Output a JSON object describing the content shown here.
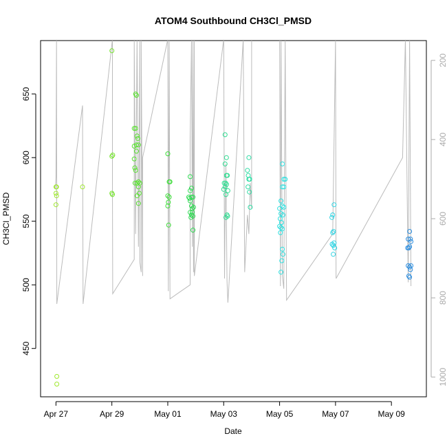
{
  "chart_data": {
    "type": "scatter",
    "title": "ATOM4 Southbound CH3Cl_PMSD",
    "xlabel": "Date",
    "ylabel": "CH3Cl_PMSD",
    "x_ticks": [
      {
        "day": 0,
        "label": "Apr 27"
      },
      {
        "day": 2,
        "label": "Apr 29"
      },
      {
        "day": 4,
        "label": "May 01"
      },
      {
        "day": 6,
        "label": "May 03"
      },
      {
        "day": 8,
        "label": "May 05"
      },
      {
        "day": 10,
        "label": "May 07"
      },
      {
        "day": 12,
        "label": "May 09"
      }
    ],
    "y_ticks": [
      450,
      500,
      550,
      600,
      650
    ],
    "y2_ticks": [
      200,
      400,
      600,
      800,
      1000
    ],
    "xlim_day": [
      -0.55,
      13.25
    ],
    "ylim": [
      412,
      692
    ],
    "y2lim": [
      1050,
      150
    ],
    "grid": false,
    "points": [
      [
        0.0,
        577,
        "#9ee82b"
      ],
      [
        0.02,
        577,
        "#9ee82b"
      ],
      [
        0.0,
        572,
        "#9ee82b"
      ],
      [
        0.02,
        570,
        "#9ee82b"
      ],
      [
        0.0,
        563,
        "#9ee82b"
      ],
      [
        0.03,
        428,
        "#9ee82b"
      ],
      [
        0.03,
        422,
        "#9ee82b"
      ],
      [
        0.95,
        577,
        "#9ee82b"
      ],
      [
        2.0,
        684,
        "#74e42c"
      ],
      [
        2.0,
        601,
        "#74e42c"
      ],
      [
        2.03,
        602,
        "#74e42c"
      ],
      [
        2.0,
        572,
        "#74e42c"
      ],
      [
        2.02,
        571,
        "#74e42c"
      ],
      [
        2.8,
        623,
        "#58e12f"
      ],
      [
        2.85,
        623,
        "#58e12f"
      ],
      [
        2.85,
        650,
        "#58e12f"
      ],
      [
        2.88,
        649,
        "#58e12f"
      ],
      [
        2.8,
        609,
        "#58e12f"
      ],
      [
        2.88,
        610,
        "#58e12f"
      ],
      [
        2.9,
        617,
        "#58e12f"
      ],
      [
        2.93,
        615,
        "#58e12f"
      ],
      [
        2.95,
        610,
        "#58e12f"
      ],
      [
        2.88,
        605,
        "#58e12f"
      ],
      [
        2.8,
        599,
        "#58e12f"
      ],
      [
        2.82,
        592,
        "#58e12f"
      ],
      [
        2.85,
        590,
        "#58e12f"
      ],
      [
        2.83,
        580,
        "#58e12f"
      ],
      [
        2.9,
        580,
        "#58e12f"
      ],
      [
        2.95,
        581,
        "#58e12f"
      ],
      [
        3.0,
        580,
        "#58e12f"
      ],
      [
        2.95,
        577,
        "#58e12f"
      ],
      [
        2.9,
        570,
        "#58e12f"
      ],
      [
        2.98,
        572,
        "#58e12f"
      ],
      [
        2.95,
        564,
        "#58e12f"
      ],
      [
        4.0,
        603,
        "#3edd3a"
      ],
      [
        4.05,
        581,
        "#3edd3a"
      ],
      [
        4.08,
        581,
        "#3edd3a"
      ],
      [
        4.0,
        570,
        "#3edd3a"
      ],
      [
        4.05,
        569,
        "#3edd3a"
      ],
      [
        4.02,
        565,
        "#3edd3a"
      ],
      [
        4.0,
        562,
        "#3edd3a"
      ],
      [
        4.03,
        547,
        "#3edd3a"
      ],
      [
        4.8,
        585,
        "#2edb52"
      ],
      [
        4.85,
        576,
        "#2edb52"
      ],
      [
        4.8,
        574,
        "#2edb52"
      ],
      [
        4.75,
        569,
        "#2edb52"
      ],
      [
        4.78,
        568,
        "#2edb52"
      ],
      [
        4.85,
        569,
        "#2edb52"
      ],
      [
        4.8,
        566,
        "#2edb52"
      ],
      [
        4.9,
        569,
        "#2edb52"
      ],
      [
        4.85,
        562,
        "#2edb52"
      ],
      [
        4.88,
        560,
        "#2edb52"
      ],
      [
        4.92,
        561,
        "#2edb52"
      ],
      [
        4.8,
        557,
        "#2edb52"
      ],
      [
        4.85,
        555,
        "#2edb52"
      ],
      [
        4.9,
        554,
        "#2edb52"
      ],
      [
        4.83,
        553,
        "#2edb52"
      ],
      [
        4.88,
        557,
        "#2edb52"
      ],
      [
        4.9,
        543,
        "#2edb52"
      ],
      [
        6.05,
        618,
        "#2cdb8f"
      ],
      [
        6.1,
        600,
        "#2cdb8f"
      ],
      [
        6.05,
        595,
        "#2cdb8f"
      ],
      [
        6.1,
        586,
        "#2cdb8f"
      ],
      [
        6.13,
        586,
        "#2cdb8f"
      ],
      [
        6.02,
        580,
        "#2cdb8f"
      ],
      [
        6.07,
        580,
        "#2cdb8f"
      ],
      [
        6.1,
        579,
        "#2cdb8f"
      ],
      [
        6.05,
        577,
        "#2cdb8f"
      ],
      [
        6.15,
        574,
        "#2cdb8f"
      ],
      [
        6.0,
        575,
        "#2cdb8f"
      ],
      [
        6.08,
        571,
        "#2cdb8f"
      ],
      [
        6.12,
        555,
        "#2cdb8f"
      ],
      [
        6.14,
        554,
        "#2cdb8f"
      ],
      [
        6.08,
        553,
        "#2cdb8f"
      ],
      [
        6.9,
        600,
        "#2edca4"
      ],
      [
        6.85,
        590,
        "#2edca4"
      ],
      [
        6.88,
        586,
        "#2edca4"
      ],
      [
        6.9,
        583,
        "#2edca4"
      ],
      [
        6.93,
        583,
        "#2edca4"
      ],
      [
        6.87,
        577,
        "#2edca4"
      ],
      [
        6.92,
        573,
        "#2edca4"
      ],
      [
        6.95,
        561,
        "#2edca4"
      ],
      [
        8.1,
        595,
        "#2ce0e0"
      ],
      [
        8.15,
        583,
        "#2ce0e0"
      ],
      [
        8.2,
        583,
        "#2ce0e0"
      ],
      [
        8.1,
        577,
        "#2ce0e0"
      ],
      [
        8.15,
        577,
        "#2ce0e0"
      ],
      [
        8.05,
        566,
        "#2ce0e0"
      ],
      [
        8.1,
        562,
        "#2ce0e0"
      ],
      [
        8.15,
        561,
        "#2ce0e0"
      ],
      [
        8.0,
        560,
        "#2ce0e0"
      ],
      [
        8.05,
        556,
        "#2ce0e0"
      ],
      [
        8.12,
        555,
        "#2ce0e0"
      ],
      [
        8.02,
        552,
        "#2ce0e0"
      ],
      [
        8.07,
        549,
        "#2ce0e0"
      ],
      [
        8.0,
        546,
        "#2ce0e0"
      ],
      [
        8.05,
        545,
        "#2ce0e0"
      ],
      [
        8.1,
        544,
        "#2ce0e0"
      ],
      [
        8.03,
        541,
        "#2ce0e0"
      ],
      [
        8.1,
        528,
        "#2ce0e0"
      ],
      [
        8.12,
        524,
        "#2ce0e0"
      ],
      [
        8.08,
        519,
        "#2ce0e0"
      ],
      [
        8.05,
        510,
        "#2ce0e0"
      ],
      [
        9.95,
        563,
        "#2dd4e3"
      ],
      [
        9.9,
        555,
        "#2dd4e3"
      ],
      [
        9.87,
        553,
        "#2dd4e3"
      ],
      [
        9.93,
        542,
        "#2dd4e3"
      ],
      [
        9.9,
        541,
        "#2dd4e3"
      ],
      [
        9.95,
        533,
        "#2dd4e3"
      ],
      [
        9.88,
        532,
        "#2dd4e3"
      ],
      [
        9.92,
        531,
        "#2dd4e3"
      ],
      [
        9.97,
        529,
        "#2dd4e3"
      ],
      [
        9.92,
        524,
        "#2dd4e3"
      ],
      [
        12.65,
        542,
        "#2c8ee0"
      ],
      [
        12.6,
        536,
        "#2c8ee0"
      ],
      [
        12.68,
        536,
        "#2c8ee0"
      ],
      [
        12.7,
        534,
        "#2c8ee0"
      ],
      [
        12.62,
        529,
        "#2c8ee0"
      ],
      [
        12.58,
        529,
        "#2c8ee0"
      ],
      [
        12.65,
        530,
        "#2c8ee0"
      ],
      [
        12.6,
        515,
        "#2c8ee0"
      ],
      [
        12.65,
        514,
        "#2c8ee0"
      ],
      [
        12.7,
        515,
        "#2c8ee0"
      ],
      [
        12.68,
        512,
        "#2c8ee0"
      ],
      [
        12.62,
        507,
        "#2c8ee0"
      ],
      [
        12.65,
        506,
        "#2c8ee0"
      ]
    ],
    "track": {
      "color": "#bbbbbb",
      "path": [
        [
          -0.02,
          575
        ],
        [
          0.0,
          585
        ],
        [
          0.02,
          693
        ],
        [
          0.03,
          485
        ],
        [
          0.95,
          641
        ],
        [
          0.97,
          485
        ],
        [
          2.02,
          693
        ],
        [
          2.02,
          585
        ],
        [
          2.03,
          493
        ],
        [
          2.8,
          520
        ],
        [
          2.8,
          693
        ],
        [
          2.85,
          540
        ],
        [
          2.9,
          693
        ],
        [
          2.95,
          530
        ],
        [
          3.0,
          693
        ],
        [
          3.0,
          518
        ],
        [
          3.05,
          510
        ],
        [
          3.05,
          693
        ],
        [
          3.1,
          507
        ],
        [
          3.1,
          600
        ],
        [
          4.0,
          693
        ],
        [
          4.02,
          495
        ],
        [
          4.05,
          693
        ],
        [
          4.08,
          489
        ],
        [
          4.8,
          500
        ],
        [
          4.8,
          615
        ],
        [
          4.85,
          693
        ],
        [
          4.88,
          530
        ],
        [
          4.9,
          693
        ],
        [
          4.92,
          510
        ],
        [
          4.95,
          693
        ],
        [
          4.95,
          507
        ],
        [
          6.0,
          693
        ],
        [
          6.03,
          505
        ],
        [
          6.05,
          550
        ],
        [
          6.08,
          595
        ],
        [
          6.12,
          503
        ],
        [
          6.15,
          486
        ],
        [
          6.7,
          693
        ],
        [
          6.75,
          510
        ],
        [
          6.85,
          555
        ],
        [
          6.9,
          540
        ],
        [
          6.95,
          580
        ],
        [
          7.0,
          560
        ],
        [
          7.0,
          693
        ],
        [
          8.0,
          693
        ],
        [
          8.03,
          499
        ],
        [
          8.05,
          693
        ],
        [
          8.1,
          507
        ],
        [
          8.15,
          497
        ],
        [
          8.2,
          693
        ],
        [
          8.25,
          488
        ],
        [
          9.9,
          540
        ],
        [
          10.0,
          693
        ],
        [
          10.02,
          505
        ],
        [
          12.4,
          600
        ],
        [
          12.5,
          693
        ],
        [
          12.6,
          502
        ],
        [
          12.65,
          693
        ],
        [
          12.7,
          499
        ]
      ],
      "note": ""
    }
  }
}
